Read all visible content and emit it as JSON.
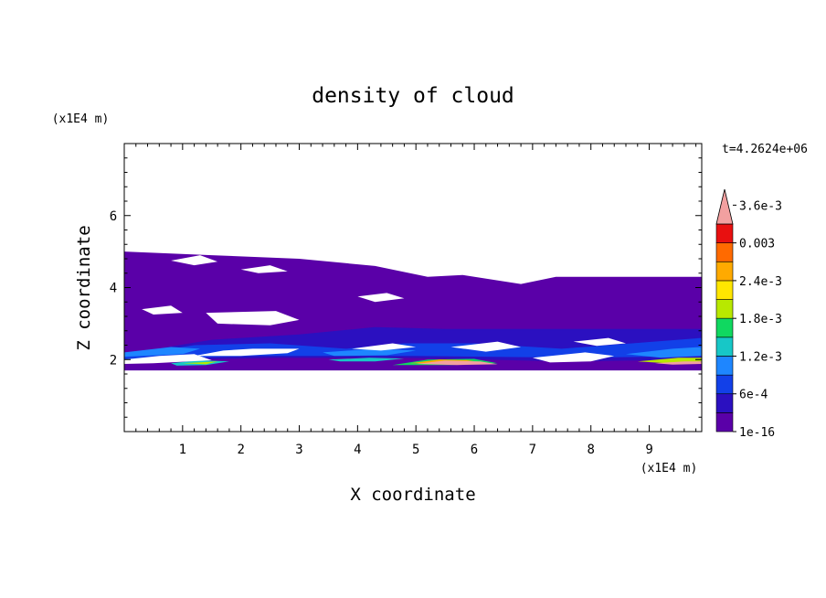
{
  "chart_data": {
    "type": "heatmap",
    "title": "density of cloud",
    "time_label": "t=4.2624e+06",
    "xlabel": "X coordinate",
    "ylabel": "Z coordinate",
    "x_unit": "(x1E4 m)",
    "y_unit": "(x1E4 m)",
    "xlim": [
      0,
      9.9
    ],
    "ylim": [
      0,
      8
    ],
    "x_ticks": [
      1,
      2,
      3,
      4,
      5,
      6,
      7,
      8,
      9
    ],
    "y_ticks": [
      2,
      4,
      6
    ],
    "grid": false,
    "colorbar": {
      "placement": "right",
      "levels": [
        "1e-16",
        "6e-4",
        "1.2e-3",
        "1.8e-3",
        "2.4e-3",
        "0.003",
        "3.6e-3"
      ],
      "colors": [
        "#5a00a8",
        "#2b10c0",
        "#1240e8",
        "#1e86ff",
        "#17c7c7",
        "#10d860",
        "#b8e800",
        "#ffe600",
        "#ffaa00",
        "#ff6a00",
        "#e81010",
        "#f2a0a0"
      ],
      "extend": "max"
    },
    "regions": [
      {
        "level": 0,
        "polygon": [
          [
            0,
            1.7
          ],
          [
            9.9,
            1.7
          ],
          [
            9.9,
            4.3
          ],
          [
            7.4,
            4.3
          ],
          [
            6.8,
            4.1
          ],
          [
            5.8,
            4.35
          ],
          [
            5.2,
            4.3
          ],
          [
            4.3,
            4.6
          ],
          [
            3.0,
            4.8
          ],
          [
            1.5,
            4.9
          ],
          [
            0,
            5.0
          ]
        ]
      },
      {
        "level": 1,
        "polygon": [
          [
            0,
            2.15
          ],
          [
            1.5,
            2.55
          ],
          [
            3.0,
            2.7
          ],
          [
            4.3,
            2.9
          ],
          [
            5.5,
            2.85
          ],
          [
            7.0,
            2.85
          ],
          [
            9.9,
            2.85
          ],
          [
            9.9,
            2.0
          ],
          [
            7.5,
            1.95
          ],
          [
            4.8,
            2.05
          ],
          [
            2.5,
            2.05
          ],
          [
            0,
            1.95
          ]
        ]
      },
      {
        "level": 2,
        "polygon": [
          [
            0,
            2.1
          ],
          [
            1.2,
            2.4
          ],
          [
            2.5,
            2.45
          ],
          [
            3.8,
            2.3
          ],
          [
            4.8,
            2.45
          ],
          [
            6.0,
            2.45
          ],
          [
            7.5,
            2.3
          ],
          [
            9.9,
            2.6
          ],
          [
            9.9,
            2.1
          ],
          [
            7.8,
            2.05
          ],
          [
            5.0,
            2.1
          ],
          [
            2.3,
            2.1
          ],
          [
            0,
            2.0
          ]
        ]
      },
      {
        "level": 3,
        "polygon": [
          [
            0,
            2.2
          ],
          [
            0.8,
            2.35
          ],
          [
            1.3,
            2.3
          ],
          [
            1.0,
            2.15
          ],
          [
            0,
            2.08
          ]
        ]
      },
      {
        "level": 3,
        "polygon": [
          [
            3.4,
            2.2
          ],
          [
            4.3,
            2.3
          ],
          [
            5.0,
            2.25
          ],
          [
            4.5,
            2.12
          ],
          [
            3.6,
            2.1
          ]
        ]
      },
      {
        "level": 3,
        "polygon": [
          [
            8.6,
            2.15
          ],
          [
            9.4,
            2.3
          ],
          [
            9.9,
            2.35
          ],
          [
            9.9,
            2.1
          ],
          [
            9.2,
            2.05
          ]
        ]
      },
      {
        "level": 4,
        "polygon": [
          [
            0.8,
            1.9
          ],
          [
            1.3,
            1.98
          ],
          [
            1.8,
            1.95
          ],
          [
            1.4,
            1.85
          ],
          [
            0.9,
            1.83
          ]
        ]
      },
      {
        "level": 4,
        "polygon": [
          [
            3.5,
            2.0
          ],
          [
            4.2,
            2.05
          ],
          [
            4.8,
            2.03
          ],
          [
            4.3,
            1.95
          ],
          [
            3.7,
            1.95
          ]
        ]
      },
      {
        "level": 5,
        "polygon": [
          [
            4.6,
            1.85
          ],
          [
            5.2,
            2.0
          ],
          [
            6.0,
            2.02
          ],
          [
            6.4,
            1.9
          ],
          [
            5.6,
            1.85
          ]
        ]
      },
      {
        "level": 6,
        "polygon": [
          [
            1.0,
            1.9
          ],
          [
            1.6,
            1.95
          ],
          [
            1.4,
            1.87
          ]
        ]
      },
      {
        "level": 6,
        "polygon": [
          [
            8.8,
            1.95
          ],
          [
            9.5,
            2.05
          ],
          [
            9.9,
            2.05
          ],
          [
            9.9,
            1.95
          ],
          [
            9.3,
            1.9
          ]
        ]
      },
      {
        "level": 8,
        "polygon": [
          [
            4.9,
            1.9
          ],
          [
            5.4,
            2.0
          ],
          [
            6.0,
            1.98
          ],
          [
            5.6,
            1.9
          ]
        ]
      },
      {
        "level": 11,
        "polygon": [
          [
            5.0,
            1.88
          ],
          [
            5.5,
            1.97
          ],
          [
            6.1,
            1.95
          ],
          [
            6.4,
            1.87
          ],
          [
            5.7,
            1.85
          ]
        ]
      },
      {
        "level": 11,
        "polygon": [
          [
            9.1,
            1.9
          ],
          [
            9.6,
            1.95
          ],
          [
            9.9,
            1.95
          ],
          [
            9.9,
            1.88
          ],
          [
            9.4,
            1.86
          ]
        ]
      }
    ],
    "gaps": [
      {
        "polygon": [
          [
            0.8,
            4.75
          ],
          [
            1.3,
            4.9
          ],
          [
            1.6,
            4.72
          ],
          [
            1.2,
            4.62
          ]
        ]
      },
      {
        "polygon": [
          [
            2.0,
            4.5
          ],
          [
            2.5,
            4.62
          ],
          [
            2.8,
            4.45
          ],
          [
            2.3,
            4.4
          ]
        ]
      },
      {
        "polygon": [
          [
            5.5,
            4.8
          ],
          [
            6.8,
            4.95
          ],
          [
            7.5,
            4.8
          ],
          [
            7.6,
            4.45
          ],
          [
            6.9,
            4.3
          ],
          [
            6.0,
            4.35
          ],
          [
            5.2,
            4.4
          ]
        ]
      },
      {
        "polygon": [
          [
            8.3,
            4.6
          ],
          [
            8.8,
            4.75
          ],
          [
            9.1,
            4.55
          ],
          [
            8.6,
            4.45
          ]
        ]
      },
      {
        "polygon": [
          [
            1.4,
            3.3
          ],
          [
            2.6,
            3.35
          ],
          [
            3.0,
            3.1
          ],
          [
            2.5,
            2.95
          ],
          [
            1.6,
            3.0
          ]
        ]
      },
      {
        "polygon": [
          [
            0.3,
            3.4
          ],
          [
            0.8,
            3.5
          ],
          [
            1.0,
            3.3
          ],
          [
            0.5,
            3.25
          ]
        ]
      },
      {
        "polygon": [
          [
            4.0,
            3.75
          ],
          [
            4.5,
            3.85
          ],
          [
            4.8,
            3.7
          ],
          [
            4.3,
            3.6
          ]
        ]
      },
      {
        "polygon": [
          [
            0,
            2.0
          ],
          [
            0.6,
            2.1
          ],
          [
            1.2,
            2.15
          ],
          [
            1.5,
            1.98
          ],
          [
            0.5,
            1.9
          ],
          [
            0,
            1.88
          ]
        ]
      },
      {
        "polygon": [
          [
            1.2,
            2.1
          ],
          [
            2.0,
            2.1
          ],
          [
            2.8,
            2.18
          ],
          [
            3.0,
            2.3
          ],
          [
            2.2,
            2.3
          ],
          [
            1.7,
            2.25
          ]
        ]
      },
      {
        "polygon": [
          [
            3.9,
            2.3
          ],
          [
            4.6,
            2.45
          ],
          [
            5.0,
            2.35
          ],
          [
            4.4,
            2.25
          ]
        ]
      },
      {
        "polygon": [
          [
            5.6,
            2.35
          ],
          [
            6.4,
            2.5
          ],
          [
            6.8,
            2.35
          ],
          [
            6.2,
            2.22
          ]
        ]
      },
      {
        "polygon": [
          [
            7.0,
            2.05
          ],
          [
            7.9,
            2.2
          ],
          [
            8.4,
            2.1
          ],
          [
            8.0,
            1.95
          ],
          [
            7.3,
            1.92
          ]
        ]
      },
      {
        "polygon": [
          [
            7.7,
            2.5
          ],
          [
            8.3,
            2.6
          ],
          [
            8.6,
            2.45
          ],
          [
            8.1,
            2.38
          ]
        ]
      }
    ]
  }
}
